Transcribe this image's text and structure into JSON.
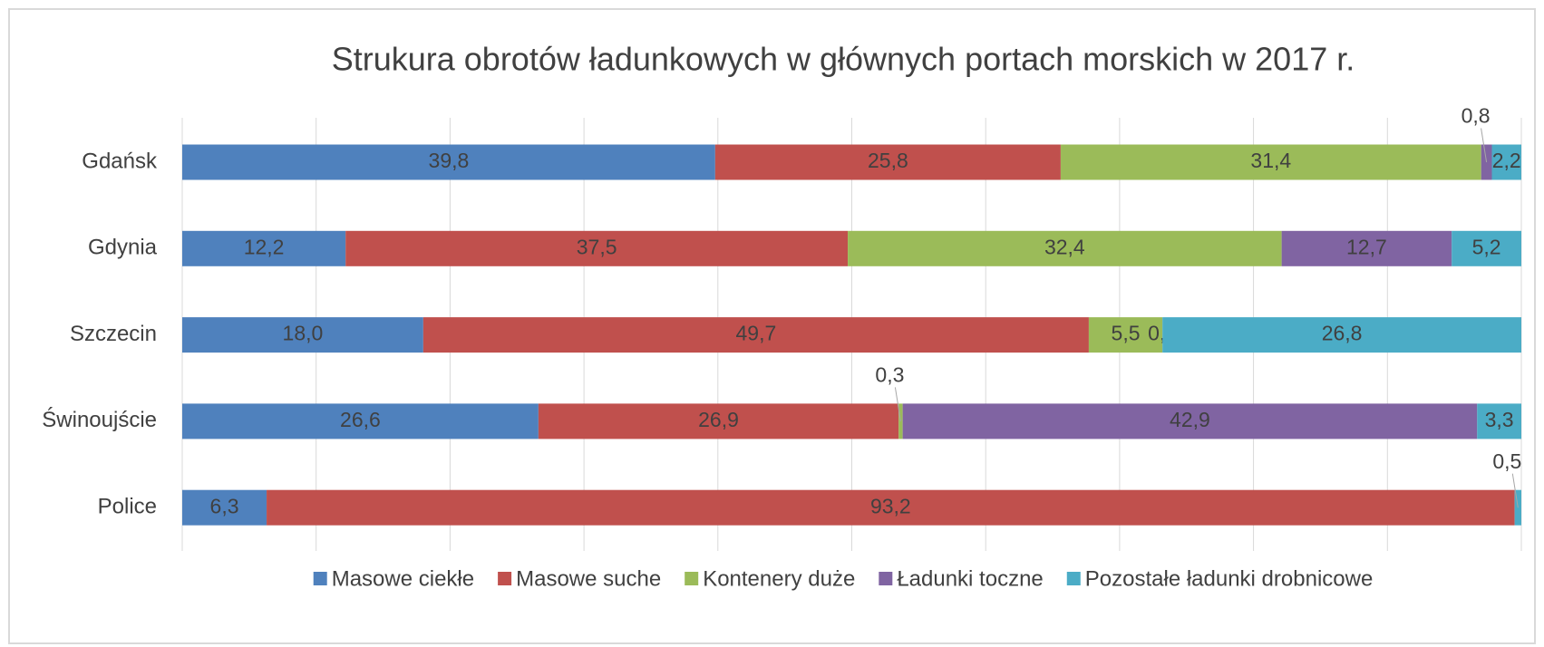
{
  "chart_data": {
    "type": "stacked_barh",
    "title": "Strukura obrotów ładunkowych w głównych portach morskich w 2017 r.",
    "categories": [
      "Gdańsk",
      "Gdynia",
      "Szczecin",
      "Świnoujście",
      "Police"
    ],
    "series": [
      {
        "name": "Masowe ciekłe",
        "color": "#4f81bd",
        "values": [
          39.8,
          12.2,
          18.0,
          26.6,
          6.3
        ],
        "value_labels": [
          "39,8",
          "12,2",
          "18,0",
          "26,6",
          "6,3"
        ]
      },
      {
        "name": "Masowe suche",
        "color": "#c0504d",
        "values": [
          25.8,
          37.5,
          49.7,
          26.9,
          93.2
        ],
        "value_labels": [
          "25,8",
          "37,5",
          "49,7",
          "26,9",
          "93,2"
        ]
      },
      {
        "name": "Kontenery duże",
        "color": "#9bbb59",
        "values": [
          31.4,
          32.4,
          5.5,
          0.3,
          null
        ],
        "value_labels": [
          "31,4",
          "32,4",
          "5,5",
          "0,3",
          null
        ]
      },
      {
        "name": "Ładunki toczne",
        "color": "#8064a2",
        "values": [
          0.8,
          12.7,
          0.0,
          42.9,
          null
        ],
        "value_labels": [
          "0,8",
          "12,7",
          "0,0",
          "42,9",
          null
        ]
      },
      {
        "name": "Pozostałe ładunki drobnicowe",
        "color": "#4bacc6",
        "values": [
          2.2,
          5.2,
          26.8,
          3.3,
          0.5
        ],
        "value_labels": [
          "2,2",
          "5,2",
          "26,8",
          "3,3",
          "0,5"
        ]
      }
    ],
    "xlim": [
      0,
      100
    ],
    "xticks": [
      0,
      10,
      20,
      30,
      40,
      50,
      60,
      70,
      80,
      90,
      100
    ],
    "grid": true,
    "legend": "bottom"
  }
}
